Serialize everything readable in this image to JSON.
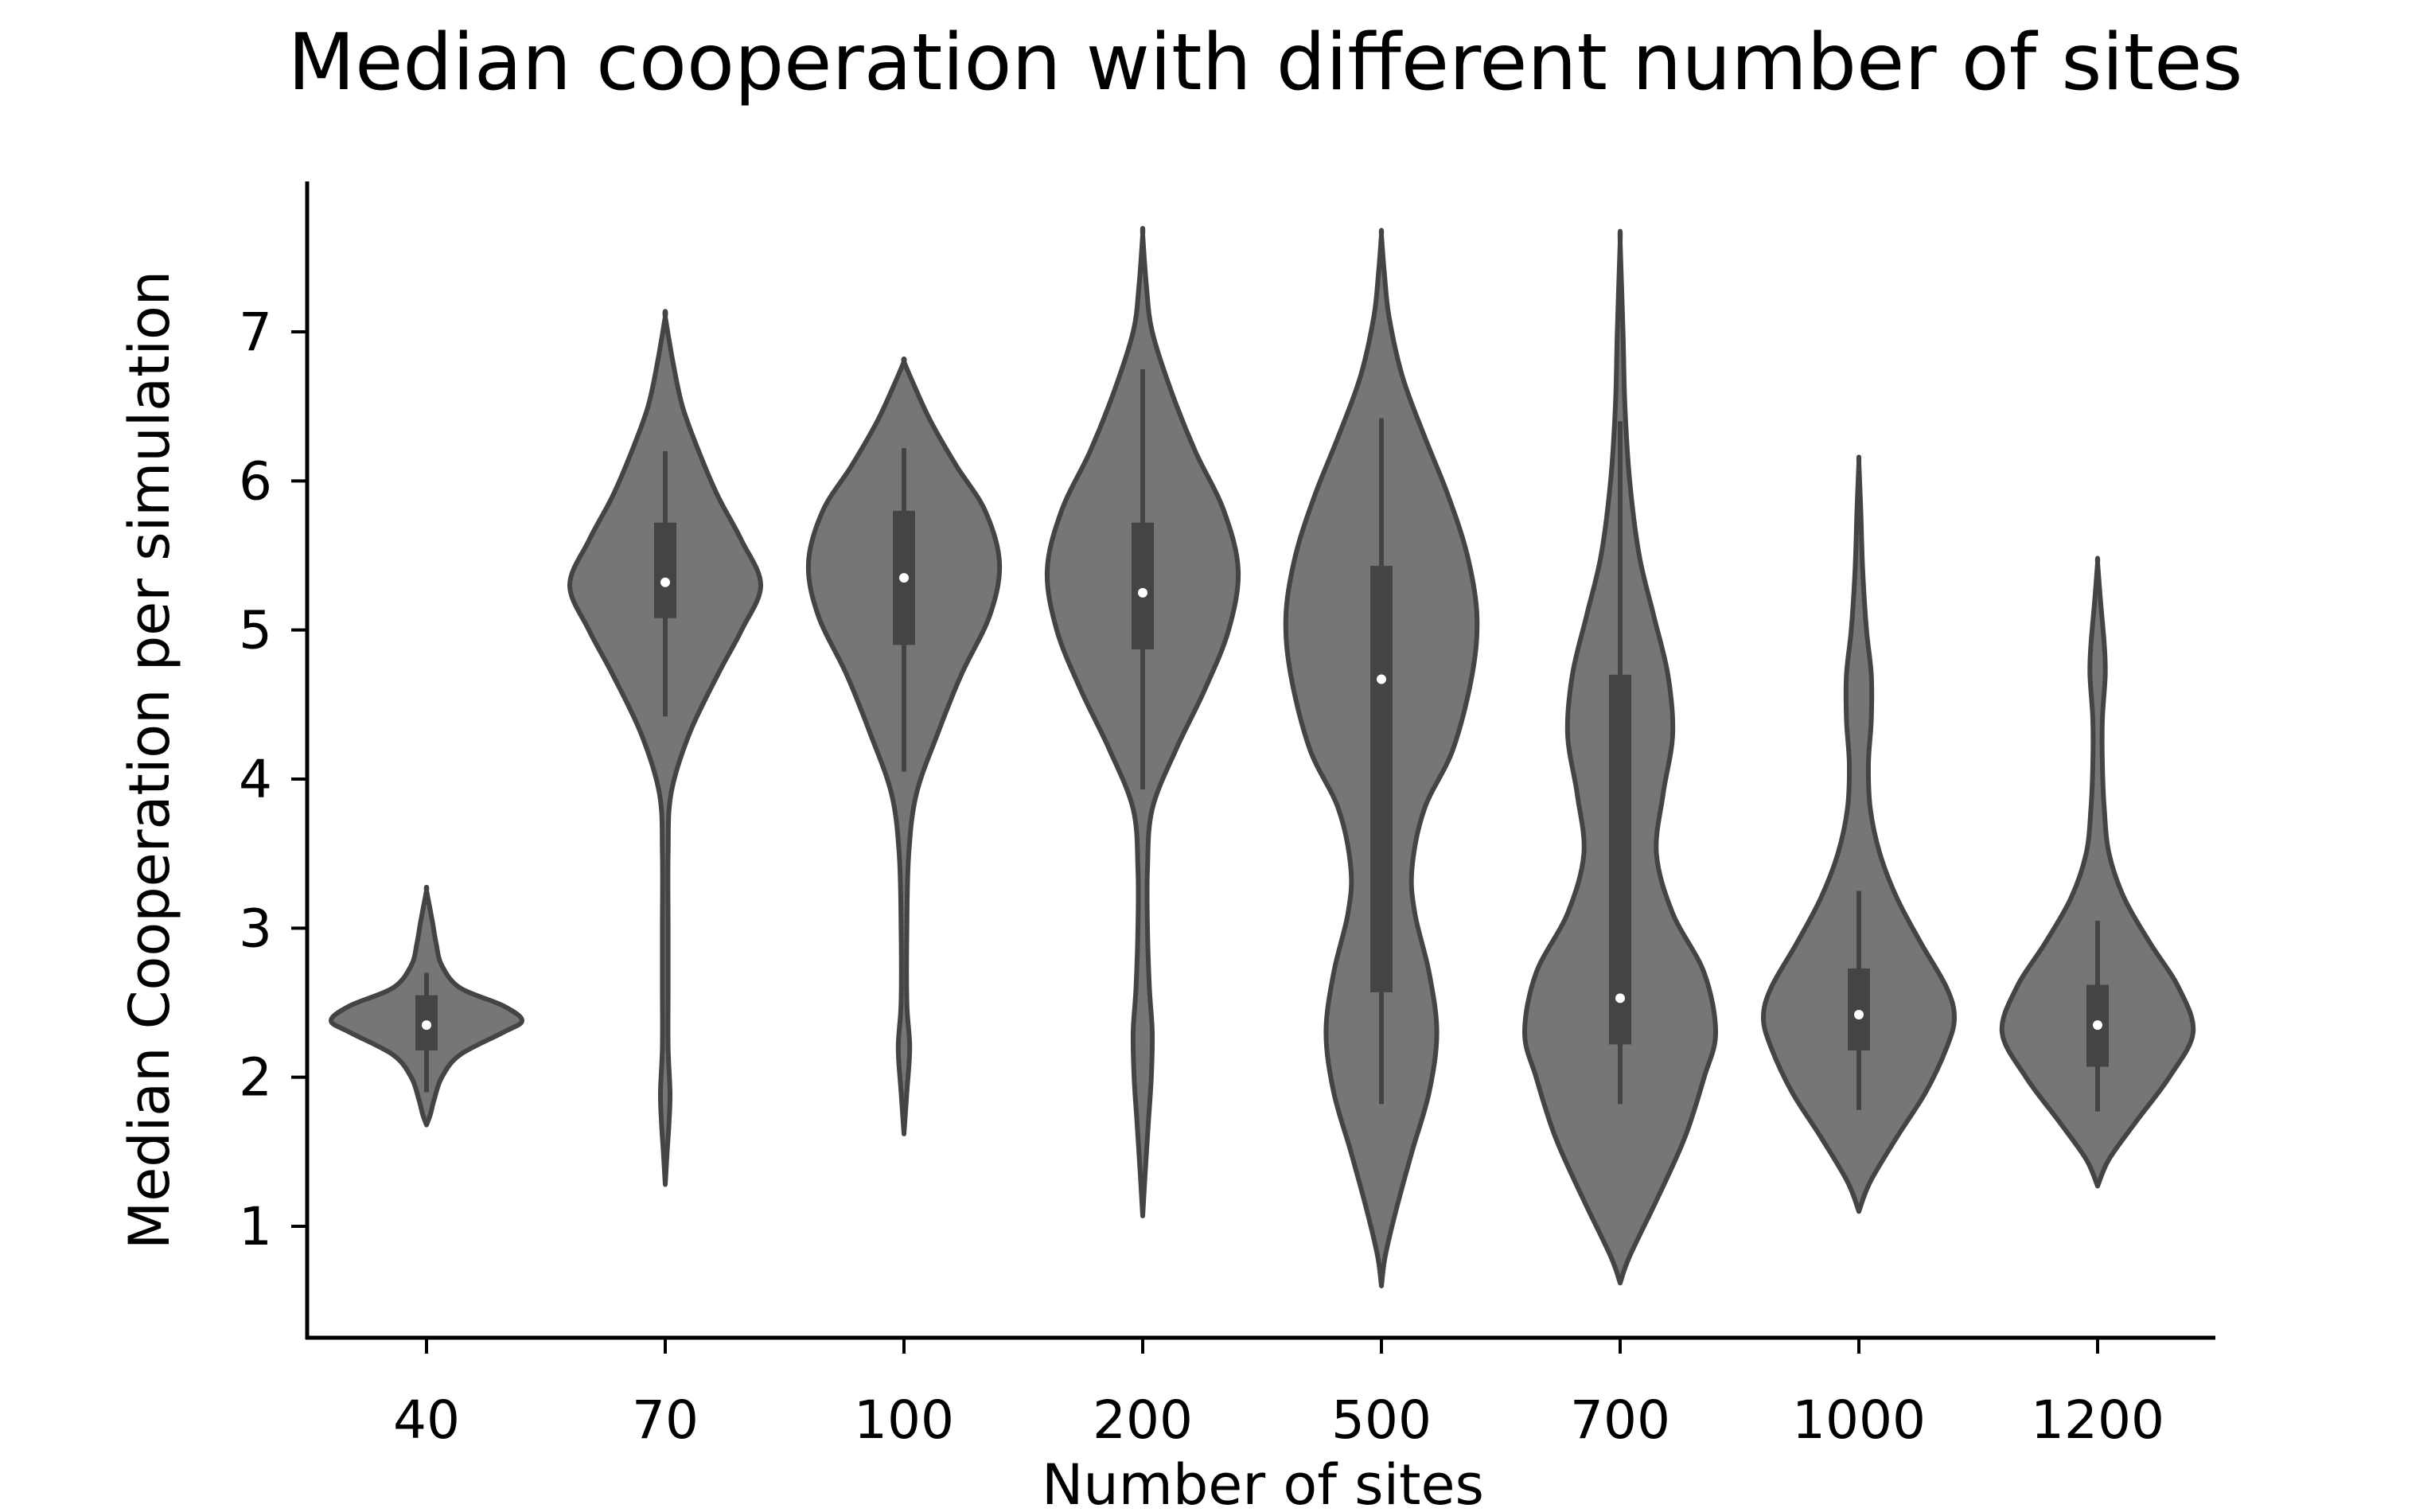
{
  "chart_data": {
    "type": "violin",
    "title": "Median cooperation with different number of sites",
    "xlabel": "Number of sites",
    "ylabel": "Median Cooperation per simulation",
    "categories": [
      "40",
      "70",
      "100",
      "200",
      "500",
      "700",
      "1000",
      "1200"
    ],
    "ylim": [
      0.25,
      8.0
    ],
    "yticks": [
      1,
      2,
      3,
      4,
      5,
      6,
      7
    ],
    "grid": false,
    "colors": {
      "violin_fill": "#767676",
      "violin_edge": "#444444",
      "box": "#444444",
      "median_dot": "#ffffff",
      "axis": "#000000"
    },
    "violins": [
      {
        "category": "40",
        "min": 1.68,
        "max": 3.25,
        "median": 2.35,
        "q1": 2.18,
        "q3": 2.55,
        "whisker_low": 1.9,
        "whisker_high": 2.7,
        "profile": [
          [
            1.68,
            0.0
          ],
          [
            1.75,
            0.04
          ],
          [
            1.85,
            0.08
          ],
          [
            2.0,
            0.16
          ],
          [
            2.15,
            0.35
          ],
          [
            2.3,
            0.8
          ],
          [
            2.38,
            1.0
          ],
          [
            2.48,
            0.8
          ],
          [
            2.6,
            0.35
          ],
          [
            2.75,
            0.16
          ],
          [
            2.9,
            0.1
          ],
          [
            3.05,
            0.06
          ],
          [
            3.25,
            0.0
          ]
        ]
      },
      {
        "category": "70",
        "min": 1.28,
        "max": 7.1,
        "median": 5.32,
        "q1": 5.08,
        "q3": 5.72,
        "whisker_low": 4.42,
        "whisker_high": 6.2,
        "profile": [
          [
            1.28,
            0.0
          ],
          [
            1.5,
            0.02
          ],
          [
            1.7,
            0.04
          ],
          [
            1.9,
            0.05
          ],
          [
            2.2,
            0.03
          ],
          [
            2.6,
            0.03
          ],
          [
            3.0,
            0.03
          ],
          [
            3.5,
            0.03
          ],
          [
            3.9,
            0.06
          ],
          [
            4.3,
            0.25
          ],
          [
            4.7,
            0.55
          ],
          [
            5.0,
            0.8
          ],
          [
            5.3,
            1.0
          ],
          [
            5.6,
            0.8
          ],
          [
            5.9,
            0.55
          ],
          [
            6.2,
            0.35
          ],
          [
            6.5,
            0.18
          ],
          [
            6.8,
            0.08
          ],
          [
            7.1,
            0.0
          ]
        ]
      },
      {
        "category": "100",
        "min": 1.62,
        "max": 6.8,
        "median": 5.35,
        "q1": 4.9,
        "q3": 5.8,
        "whisker_low": 4.05,
        "whisker_high": 6.22,
        "profile": [
          [
            1.62,
            0.0
          ],
          [
            1.9,
            0.03
          ],
          [
            2.2,
            0.06
          ],
          [
            2.5,
            0.03
          ],
          [
            3.0,
            0.03
          ],
          [
            3.5,
            0.05
          ],
          [
            3.9,
            0.13
          ],
          [
            4.3,
            0.35
          ],
          [
            4.7,
            0.6
          ],
          [
            5.1,
            0.9
          ],
          [
            5.45,
            1.0
          ],
          [
            5.8,
            0.85
          ],
          [
            6.1,
            0.55
          ],
          [
            6.4,
            0.28
          ],
          [
            6.65,
            0.1
          ],
          [
            6.8,
            0.0
          ]
        ]
      },
      {
        "category": "200",
        "min": 1.07,
        "max": 7.65,
        "median": 5.25,
        "q1": 4.87,
        "q3": 5.72,
        "whisker_low": 3.93,
        "whisker_high": 6.75,
        "profile": [
          [
            1.07,
            0.0
          ],
          [
            1.4,
            0.03
          ],
          [
            1.7,
            0.06
          ],
          [
            2.0,
            0.09
          ],
          [
            2.3,
            0.1
          ],
          [
            2.6,
            0.07
          ],
          [
            3.0,
            0.05
          ],
          [
            3.4,
            0.05
          ],
          [
            3.8,
            0.1
          ],
          [
            4.2,
            0.35
          ],
          [
            4.6,
            0.65
          ],
          [
            5.0,
            0.9
          ],
          [
            5.4,
            1.0
          ],
          [
            5.8,
            0.85
          ],
          [
            6.2,
            0.55
          ],
          [
            6.6,
            0.3
          ],
          [
            7.0,
            0.1
          ],
          [
            7.3,
            0.04
          ],
          [
            7.65,
            0.0
          ]
        ]
      },
      {
        "category": "500",
        "min": 0.6,
        "max": 7.65,
        "median": 4.67,
        "q1": 2.57,
        "q3": 5.43,
        "whisker_low": 1.82,
        "whisker_high": 6.42,
        "profile": [
          [
            0.6,
            0.0
          ],
          [
            0.8,
            0.04
          ],
          [
            1.1,
            0.15
          ],
          [
            1.5,
            0.32
          ],
          [
            1.9,
            0.5
          ],
          [
            2.3,
            0.58
          ],
          [
            2.7,
            0.5
          ],
          [
            3.1,
            0.35
          ],
          [
            3.4,
            0.32
          ],
          [
            3.8,
            0.45
          ],
          [
            4.2,
            0.75
          ],
          [
            4.7,
            0.95
          ],
          [
            5.1,
            1.0
          ],
          [
            5.5,
            0.9
          ],
          [
            5.9,
            0.7
          ],
          [
            6.3,
            0.45
          ],
          [
            6.7,
            0.22
          ],
          [
            7.1,
            0.08
          ],
          [
            7.4,
            0.03
          ],
          [
            7.65,
            0.0
          ]
        ]
      },
      {
        "category": "700",
        "min": 0.62,
        "max": 7.6,
        "median": 2.53,
        "q1": 2.22,
        "q3": 4.7,
        "whisker_low": 1.82,
        "whisker_high": 6.4,
        "profile": [
          [
            0.62,
            0.0
          ],
          [
            0.8,
            0.1
          ],
          [
            1.2,
            0.4
          ],
          [
            1.6,
            0.68
          ],
          [
            2.0,
            0.88
          ],
          [
            2.3,
            1.0
          ],
          [
            2.7,
            0.88
          ],
          [
            3.1,
            0.55
          ],
          [
            3.5,
            0.38
          ],
          [
            3.9,
            0.45
          ],
          [
            4.3,
            0.55
          ],
          [
            4.7,
            0.5
          ],
          [
            5.1,
            0.35
          ],
          [
            5.5,
            0.2
          ],
          [
            6.0,
            0.1
          ],
          [
            6.5,
            0.05
          ],
          [
            7.0,
            0.03
          ],
          [
            7.6,
            0.0
          ]
        ]
      },
      {
        "category": "1000",
        "min": 1.1,
        "max": 6.12,
        "median": 2.42,
        "q1": 2.18,
        "q3": 2.73,
        "whisker_low": 1.78,
        "whisker_high": 3.25,
        "profile": [
          [
            1.1,
            0.0
          ],
          [
            1.3,
            0.12
          ],
          [
            1.6,
            0.4
          ],
          [
            1.9,
            0.7
          ],
          [
            2.2,
            0.92
          ],
          [
            2.4,
            1.0
          ],
          [
            2.6,
            0.92
          ],
          [
            2.9,
            0.65
          ],
          [
            3.2,
            0.4
          ],
          [
            3.5,
            0.22
          ],
          [
            3.8,
            0.12
          ],
          [
            4.1,
            0.1
          ],
          [
            4.4,
            0.13
          ],
          [
            4.7,
            0.13
          ],
          [
            5.0,
            0.08
          ],
          [
            5.4,
            0.04
          ],
          [
            5.8,
            0.02
          ],
          [
            6.12,
            0.0
          ]
        ]
      },
      {
        "category": "1200",
        "min": 1.27,
        "max": 5.45,
        "median": 2.35,
        "q1": 2.07,
        "q3": 2.62,
        "whisker_low": 1.77,
        "whisker_high": 3.05,
        "profile": [
          [
            1.27,
            0.0
          ],
          [
            1.45,
            0.12
          ],
          [
            1.7,
            0.4
          ],
          [
            2.0,
            0.75
          ],
          [
            2.3,
            1.0
          ],
          [
            2.6,
            0.85
          ],
          [
            2.9,
            0.55
          ],
          [
            3.2,
            0.28
          ],
          [
            3.5,
            0.12
          ],
          [
            3.8,
            0.07
          ],
          [
            4.1,
            0.05
          ],
          [
            4.4,
            0.05
          ],
          [
            4.7,
            0.08
          ],
          [
            4.9,
            0.07
          ],
          [
            5.2,
            0.03
          ],
          [
            5.45,
            0.0
          ]
        ]
      }
    ]
  }
}
